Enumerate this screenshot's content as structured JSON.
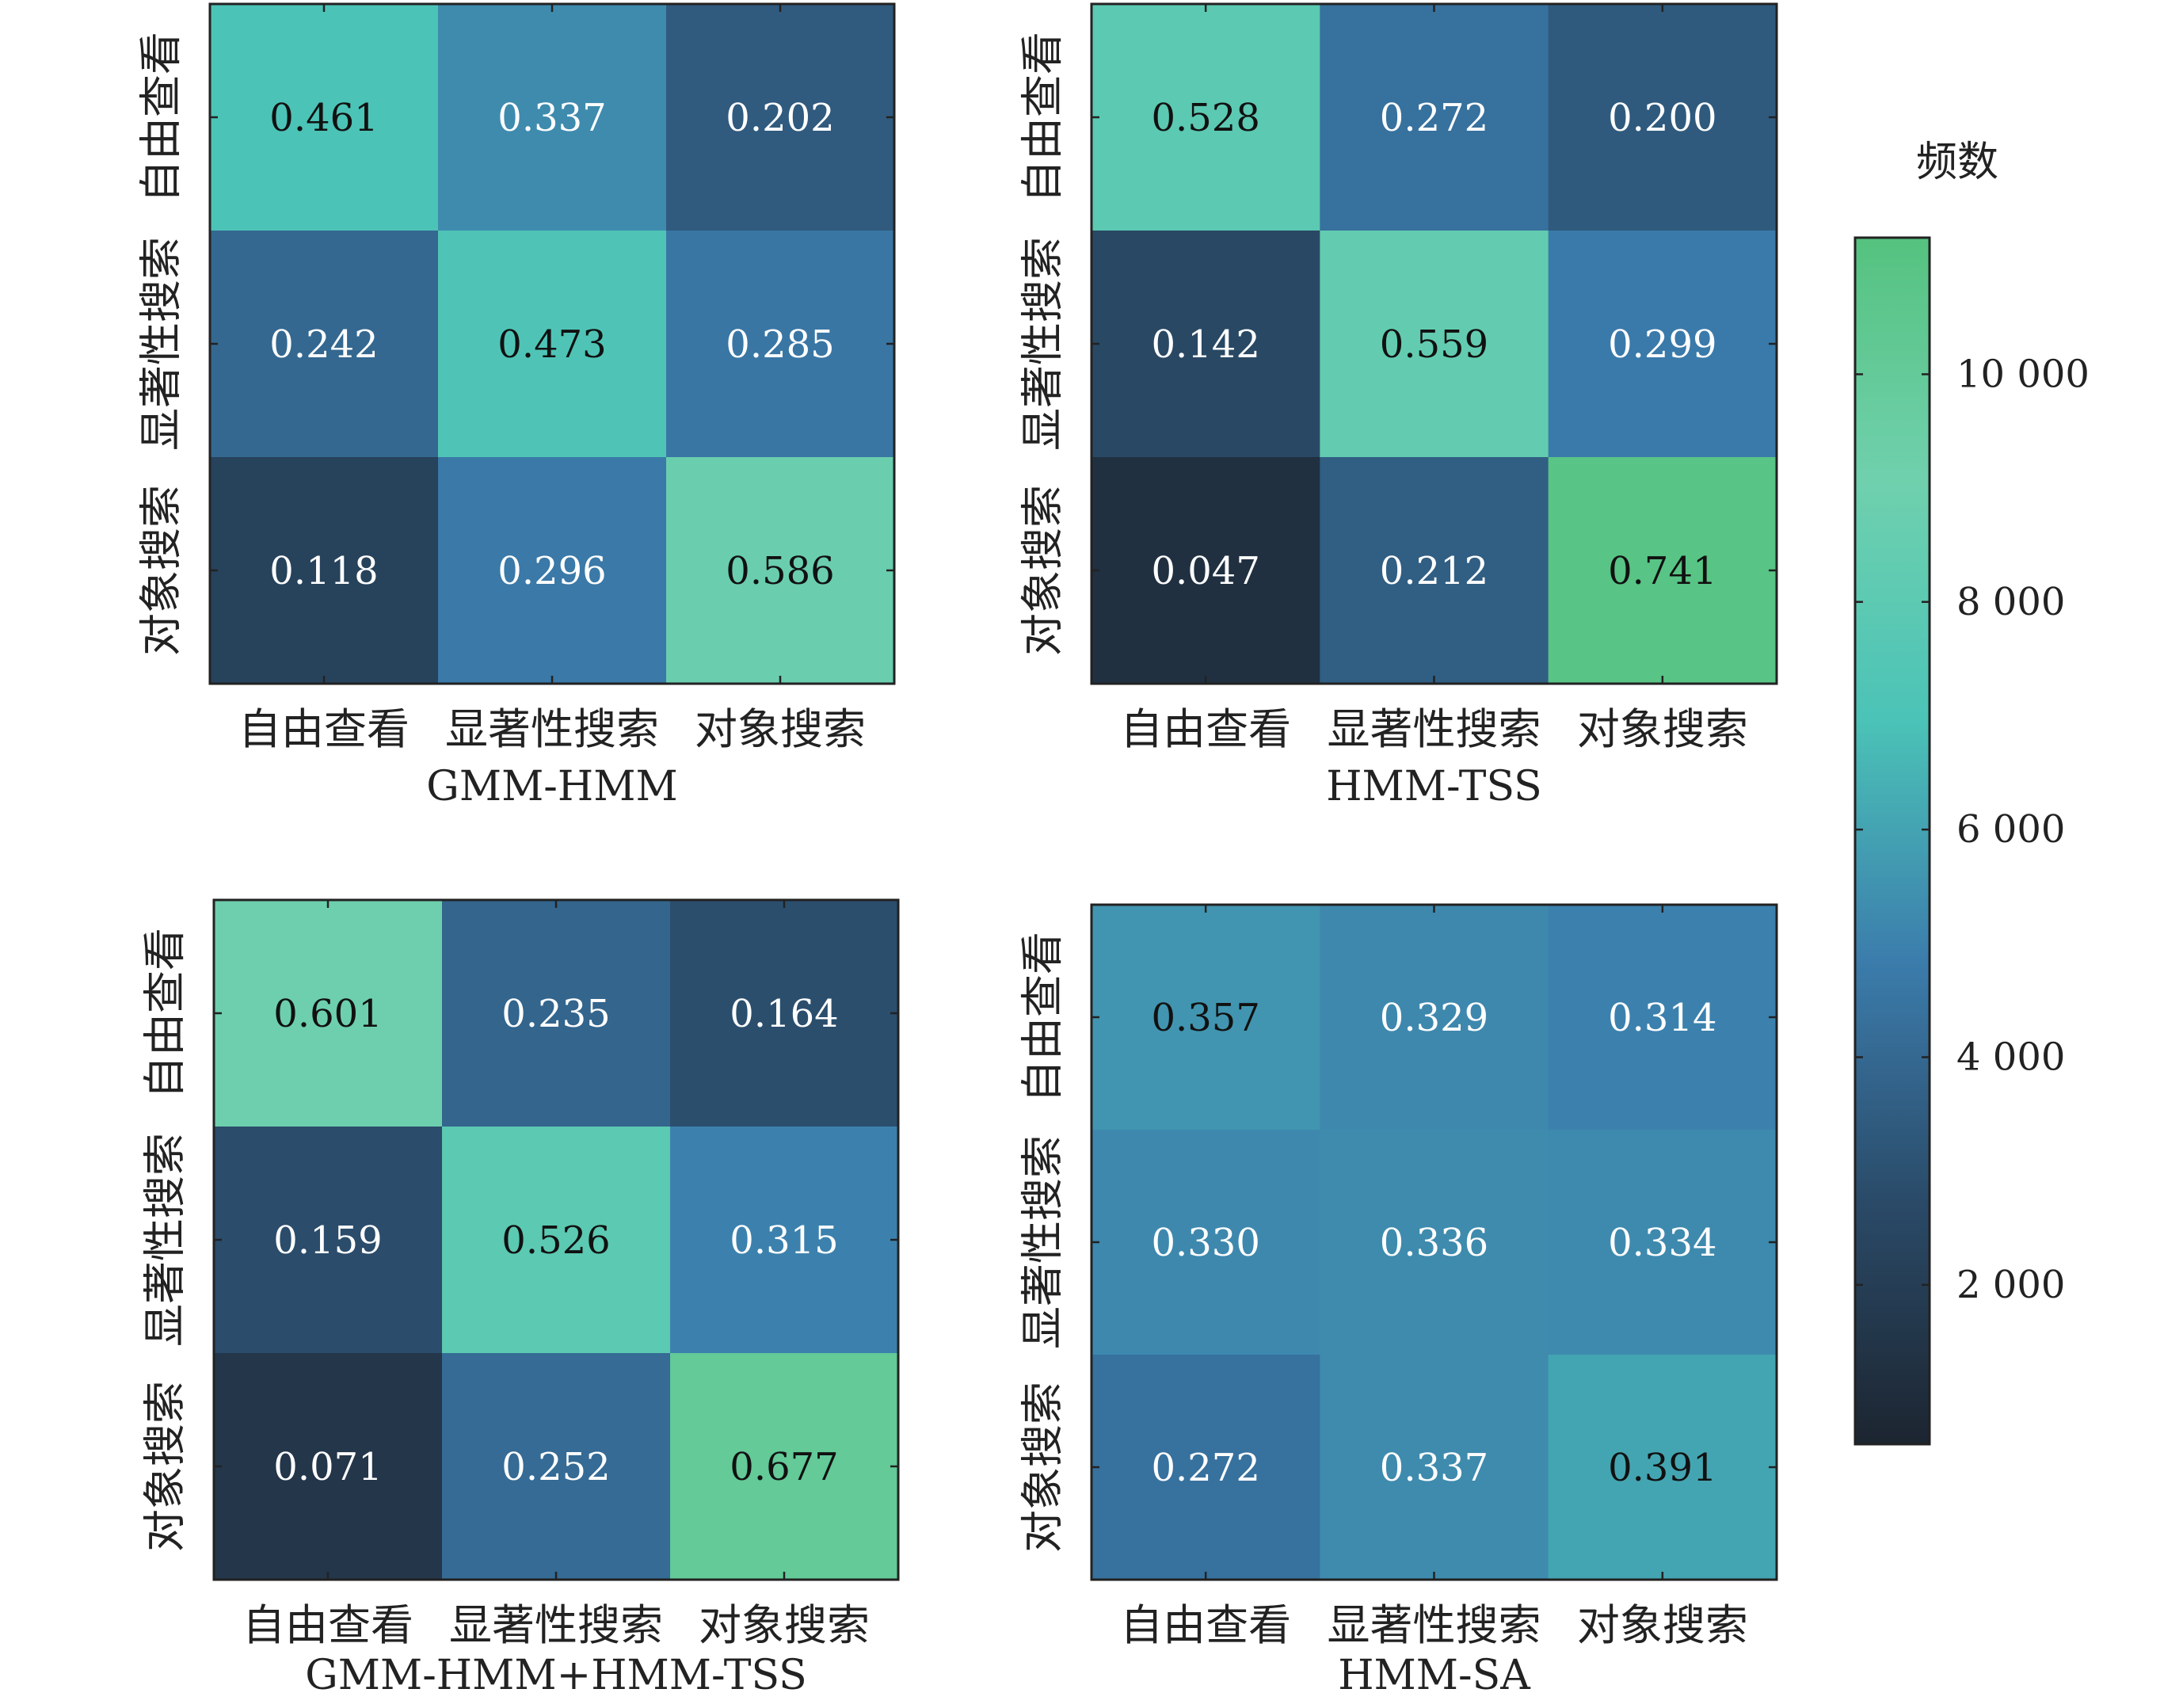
{
  "chart_data": [
    {
      "type": "heatmap",
      "title": "GMM-HMM",
      "categories": [
        "自由查看",
        "显著性搜索",
        "对象搜索"
      ],
      "y_categories": [
        "自由查看",
        "显著性搜索",
        "对象搜索"
      ],
      "values": [
        [
          0.461,
          0.337,
          0.202
        ],
        [
          0.242,
          0.473,
          0.285
        ],
        [
          0.118,
          0.296,
          0.586
        ]
      ],
      "labels": [
        [
          "0.461",
          "0.337",
          "0.202"
        ],
        [
          "0.242",
          "0.473",
          "0.285"
        ],
        [
          "0.118",
          "0.296",
          "0.586"
        ]
      ],
      "xlabel": "",
      "ylabel": ""
    },
    {
      "type": "heatmap",
      "title": "HMM-TSS",
      "categories": [
        "自由查看",
        "显著性搜索",
        "对象搜索"
      ],
      "y_categories": [
        "自由查看",
        "显著性搜索",
        "对象搜索"
      ],
      "values": [
        [
          0.528,
          0.272,
          0.2
        ],
        [
          0.142,
          0.559,
          0.299
        ],
        [
          0.047,
          0.212,
          0.741
        ]
      ],
      "labels": [
        [
          "0.528",
          "0.272",
          "0.200"
        ],
        [
          "0.142",
          "0.559",
          "0.299"
        ],
        [
          "0.047",
          "0.212",
          "0.741"
        ]
      ],
      "xlabel": "",
      "ylabel": ""
    },
    {
      "type": "heatmap",
      "title": "GMM-HMM+HMM-TSS",
      "categories": [
        "自由查看",
        "显著性搜索",
        "对象搜索"
      ],
      "y_categories": [
        "自由查看",
        "显著性搜索",
        "对象搜索"
      ],
      "values": [
        [
          0.601,
          0.235,
          0.164
        ],
        [
          0.159,
          0.526,
          0.315
        ],
        [
          0.071,
          0.252,
          0.677
        ]
      ],
      "labels": [
        [
          "0.601",
          "0.235",
          "0.164"
        ],
        [
          "0.159",
          "0.526",
          "0.315"
        ],
        [
          "0.071",
          "0.252",
          "0.677"
        ]
      ],
      "xlabel": "",
      "ylabel": ""
    },
    {
      "type": "heatmap",
      "title": "HMM-SA",
      "categories": [
        "自由查看",
        "显著性搜索",
        "对象搜索"
      ],
      "y_categories": [
        "自由查看",
        "显著性搜索",
        "对象搜索"
      ],
      "values": [
        [
          0.357,
          0.329,
          0.314
        ],
        [
          0.33,
          0.336,
          0.334
        ],
        [
          0.272,
          0.337,
          0.391
        ]
      ],
      "labels": [
        [
          "0.357",
          "0.329",
          "0.314"
        ],
        [
          "0.330",
          "0.336",
          "0.334"
        ],
        [
          "0.272",
          "0.337",
          "0.391"
        ]
      ],
      "xlabel": "",
      "ylabel": ""
    }
  ],
  "colorbar": {
    "title": "频数",
    "ticks": [
      2000,
      4000,
      6000,
      8000,
      10000
    ],
    "tick_labels": [
      "2 000",
      "4 000",
      "6 000",
      "8 000",
      "10 000"
    ],
    "range": [
      600,
      11200
    ],
    "colors": [
      "#1c2530",
      "#2a4a68",
      "#3b7cac",
      "#4bc3b7",
      "#6fd0ad",
      "#55c27f"
    ]
  }
}
